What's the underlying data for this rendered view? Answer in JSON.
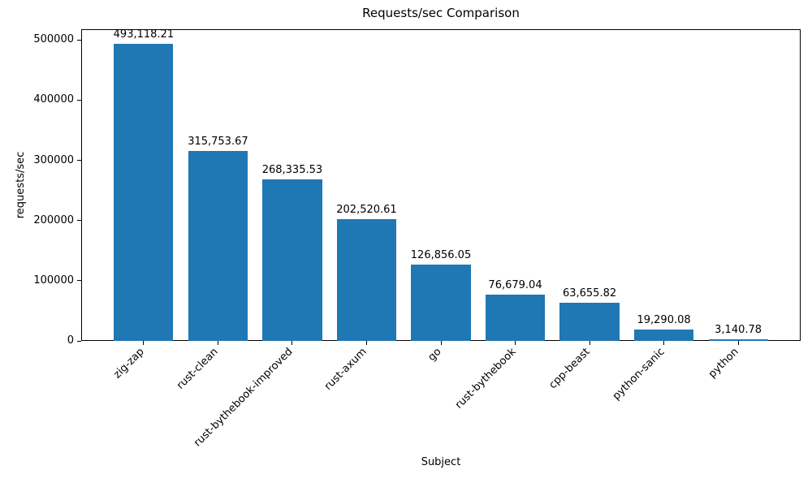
{
  "chart_data": {
    "type": "bar",
    "title": "Requests/sec Comparison",
    "xlabel": "Subject",
    "ylabel": "requests/sec",
    "categories": [
      "zig-zap",
      "rust-clean",
      "rust-bythebook-improved",
      "rust-axum",
      "go",
      "rust-bythebook",
      "cpp-beast",
      "python-sanic",
      "python"
    ],
    "values": [
      493118.21,
      315753.67,
      268335.53,
      202520.61,
      126856.05,
      76679.04,
      63655.82,
      19290.08,
      3140.78
    ],
    "bar_labels": [
      "493,118.21",
      "315,753.67",
      "268,335.53",
      "202,520.61",
      "126,856.05",
      "76,679.04",
      "63,655.82",
      "19,290.08",
      "3,140.78"
    ],
    "yticks": [
      0,
      100000,
      200000,
      300000,
      400000,
      500000
    ],
    "ylim": [
      0,
      517774
    ],
    "bar_color": "#1f77b4",
    "axis_color": "#000000",
    "background_color": "#ffffff",
    "grid": false,
    "legend": null,
    "x_tick_rotation_deg": 45
  }
}
